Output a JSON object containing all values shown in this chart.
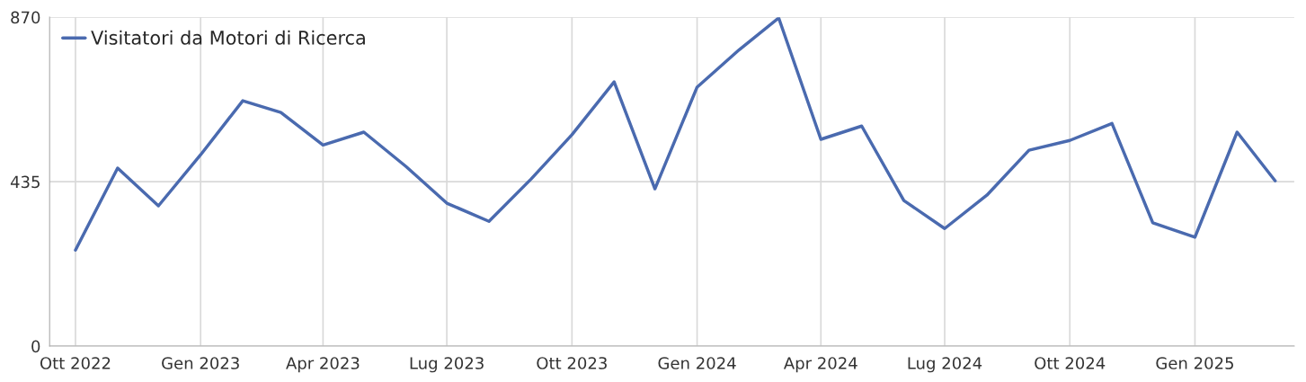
{
  "chart_data": {
    "type": "line",
    "x": [
      "2022-10",
      "2022-11",
      "2022-12",
      "2023-01",
      "2023-02",
      "2023-03",
      "2023-04",
      "2023-05",
      "2023-06",
      "2023-07",
      "2023-08",
      "2023-09",
      "2023-10",
      "2023-11",
      "2023-12",
      "2024-01",
      "2024-02",
      "2024-03",
      "2024-04",
      "2024-05",
      "2024-06",
      "2024-07",
      "2024-08",
      "2024-09",
      "2024-10",
      "2024-11",
      "2024-12",
      "2025-01",
      "2025-02",
      "2025-03"
    ],
    "series": [
      {
        "name": "Visitatori da Motori di Ricerca",
        "color": "#4a6aaf",
        "values": [
          254,
          471,
          371,
          506,
          649,
          618,
          532,
          566,
          475,
          378,
          330,
          442,
          559,
          699,
          416,
          685,
          784,
          868,
          547,
          582,
          385,
          311,
          399,
          518,
          544,
          589,
          326,
          288,
          566,
          437
        ]
      }
    ],
    "xlim": [
      "2022-09-12",
      "2025-03-15"
    ],
    "xticks": [
      {
        "value": "2022-10",
        "label": "Ott 2022"
      },
      {
        "value": "2023-01",
        "label": "Gen 2023"
      },
      {
        "value": "2023-04",
        "label": "Apr 2023"
      },
      {
        "value": "2023-07",
        "label": "Lug 2023"
      },
      {
        "value": "2023-10",
        "label": "Ott 2023"
      },
      {
        "value": "2024-01",
        "label": "Gen 2024"
      },
      {
        "value": "2024-04",
        "label": "Apr 2024"
      },
      {
        "value": "2024-07",
        "label": "Lug 2024"
      },
      {
        "value": "2024-10",
        "label": "Ott 2024"
      },
      {
        "value": "2025-01",
        "label": "Gen 2025"
      }
    ],
    "ylim": [
      0,
      870
    ],
    "yticks": [
      0,
      435,
      870
    ],
    "grid": true,
    "legend": "top left",
    "marker": "none",
    "line_style": "solid"
  }
}
